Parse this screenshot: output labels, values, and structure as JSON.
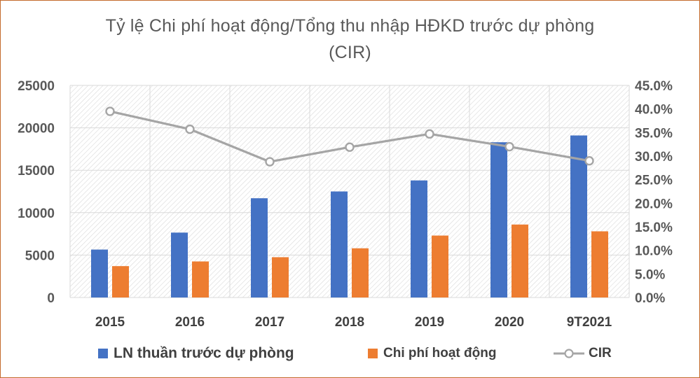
{
  "chart_data": {
    "type": "bar",
    "title_line1": "Tỷ lệ Chi phí hoạt động/Tổng thu nhập HĐKD trước dự phòng",
    "title_line2": "(CIR)",
    "categories": [
      "2015",
      "2016",
      "2017",
      "2018",
      "2019",
      "2020",
      "9T2021"
    ],
    "series": [
      {
        "name": "LN thuần trước dự phòng",
        "type": "bar",
        "axis": "left",
        "color": "#4472c4",
        "values": [
          5650,
          7650,
          11700,
          12500,
          13800,
          18300,
          19100
        ]
      },
      {
        "name": "Chi phí hoạt động",
        "type": "bar",
        "axis": "left",
        "color": "#ed7d31",
        "values": [
          3700,
          4250,
          4750,
          5800,
          7300,
          8600,
          7800
        ]
      },
      {
        "name": "CIR",
        "type": "line",
        "axis": "right",
        "color": "#a5a5a5",
        "values": [
          39.5,
          35.7,
          28.8,
          31.9,
          34.7,
          32.0,
          29.0
        ]
      }
    ],
    "y_left": {
      "min": 0,
      "max": 25000,
      "ticks": [
        "0",
        "5000",
        "10000",
        "15000",
        "20000",
        "25000"
      ]
    },
    "y_right": {
      "min": 0,
      "max": 45,
      "ticks": [
        "0.0%",
        "5.0%",
        "10.0%",
        "15.0%",
        "20.0%",
        "25.0%",
        "30.0%",
        "35.0%",
        "40.0%",
        "45.0%"
      ]
    },
    "grid": "hatched-background",
    "legend": "bottom"
  }
}
